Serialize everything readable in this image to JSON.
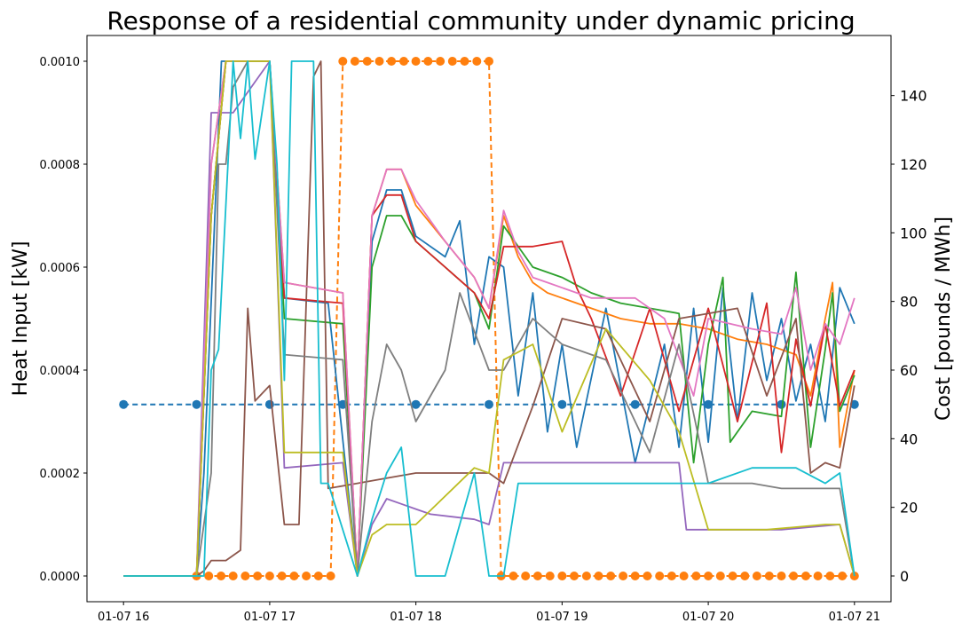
{
  "chart_data": {
    "type": "line",
    "title": "Response of a residential community under dynamic pricing",
    "xlabel": "",
    "ylabel": "Heat Input [kW]",
    "ylabel_right": "Cost [pounds / MWh]",
    "x_ticks": [
      "01-07 16",
      "01-07 17",
      "01-07 18",
      "01-07 19",
      "01-07 20",
      "01-07 21"
    ],
    "xlim": [
      15.75,
      21.25
    ],
    "ylim": [
      -5e-05,
      0.00105
    ],
    "y_ticks": [
      0.0,
      0.0002,
      0.0004,
      0.0006,
      0.0008,
      0.001
    ],
    "y_tick_labels": [
      "0.0000",
      "0.0002",
      "0.0004",
      "0.0006",
      "0.0008",
      "0.0010"
    ],
    "ylim_right": [
      -7.5,
      157.5
    ],
    "y_ticks_right": [
      0,
      20,
      40,
      60,
      80,
      100,
      120,
      140
    ],
    "grid": false,
    "price_series": [
      {
        "axis": "right",
        "color": "#1f77b4",
        "style": "dashed-markers",
        "x": [
          16.0,
          16.5,
          17.0,
          17.5,
          18.0,
          18.5,
          19.0,
          19.5,
          20.0,
          20.5,
          21.0
        ],
        "values": [
          50,
          50,
          50,
          50,
          50,
          50,
          50,
          50,
          50,
          50,
          50
        ]
      },
      {
        "axis": "right",
        "color": "#ff7f0e",
        "style": "dashed-markers",
        "x": [
          16.5,
          16.583,
          16.667,
          16.75,
          16.833,
          16.917,
          17.0,
          17.083,
          17.167,
          17.25,
          17.333,
          17.417,
          17.5,
          17.583,
          17.667,
          17.75,
          17.833,
          17.917,
          18.0,
          18.083,
          18.167,
          18.25,
          18.333,
          18.417,
          18.5,
          18.583,
          18.667,
          18.75,
          18.833,
          18.917,
          19.0,
          19.083,
          19.167,
          19.25,
          19.333,
          19.417,
          19.5,
          19.583,
          19.667,
          19.75,
          19.833,
          19.917,
          20.0,
          20.083,
          20.167,
          20.25,
          20.333,
          20.417,
          20.5,
          20.583,
          20.667,
          20.75,
          20.833,
          20.917,
          21.0
        ],
        "values": [
          0,
          0,
          0,
          0,
          0,
          0,
          0,
          0,
          0,
          0,
          0,
          0,
          150,
          150,
          150,
          150,
          150,
          150,
          150,
          150,
          150,
          150,
          150,
          150,
          150,
          0,
          0,
          0,
          0,
          0,
          0,
          0,
          0,
          0,
          0,
          0,
          0,
          0,
          0,
          0,
          0,
          0,
          0,
          0,
          0,
          0,
          0,
          0,
          0,
          0,
          0,
          0,
          0,
          0,
          0
        ]
      }
    ],
    "heat_series": [
      {
        "color": "#1f77b4",
        "x": [
          16.0,
          16.5,
          16.55,
          16.67,
          16.75,
          17.0,
          17.1,
          17.4,
          17.6,
          17.7,
          17.8,
          17.9,
          18.0,
          18.2,
          18.3,
          18.4,
          18.5,
          18.6,
          18.7,
          18.8,
          18.9,
          19.0,
          19.1,
          19.3,
          19.5,
          19.7,
          19.8,
          19.9,
          20.0,
          20.1,
          20.2,
          20.3,
          20.4,
          20.5,
          20.6,
          20.7,
          20.8,
          20.9,
          21.0
        ],
        "values": [
          0,
          0,
          0.0002,
          0.001,
          0.001,
          0.001,
          0.00054,
          0.00053,
          0,
          0.00065,
          0.00075,
          0.00075,
          0.00066,
          0.00062,
          0.00069,
          0.00045,
          0.00062,
          0.0006,
          0.00035,
          0.00055,
          0.00028,
          0.00045,
          0.00025,
          0.00052,
          0.00022,
          0.00045,
          0.00025,
          0.00052,
          0.00026,
          0.00056,
          0.0003,
          0.00055,
          0.00038,
          0.0005,
          0.00034,
          0.00045,
          0.0003,
          0.00056,
          0.00049
        ]
      },
      {
        "color": "#ff7f0e",
        "x": [
          16.0,
          16.5,
          16.6,
          16.7,
          17.0,
          17.1,
          17.5,
          17.6,
          17.7,
          17.8,
          17.9,
          18.0,
          18.2,
          18.4,
          18.5,
          18.6,
          18.7,
          18.8,
          18.9,
          19.0,
          19.2,
          19.4,
          19.6,
          19.8,
          20.0,
          20.2,
          20.4,
          20.6,
          20.7,
          20.8,
          20.85,
          20.9,
          21.0
        ],
        "values": [
          0,
          0,
          0.0008,
          0.001,
          0.001,
          0.00057,
          0.00055,
          0,
          0.0007,
          0.00079,
          0.00079,
          0.00072,
          0.00065,
          0.00058,
          0.00052,
          0.0007,
          0.00062,
          0.00057,
          0.00055,
          0.00054,
          0.00052,
          0.0005,
          0.00049,
          0.00049,
          0.00048,
          0.00046,
          0.00045,
          0.00043,
          0.00035,
          0.0005,
          0.00057,
          0.00025,
          0.0004
        ]
      },
      {
        "color": "#2ca02c",
        "x": [
          16.0,
          16.5,
          16.6,
          16.7,
          17.0,
          17.1,
          17.5,
          17.6,
          17.7,
          17.8,
          17.9,
          18.0,
          18.2,
          18.4,
          18.5,
          18.6,
          18.8,
          19.0,
          19.2,
          19.4,
          19.6,
          19.8,
          19.9,
          20.0,
          20.1,
          20.15,
          20.3,
          20.5,
          20.6,
          20.7,
          20.8,
          20.85,
          20.9,
          21.0
        ],
        "values": [
          0,
          0,
          0.0007,
          0.001,
          0.001,
          0.0005,
          0.00049,
          0,
          0.0006,
          0.0007,
          0.0007,
          0.00065,
          0.0006,
          0.00055,
          0.00048,
          0.00068,
          0.0006,
          0.00058,
          0.00055,
          0.00053,
          0.00052,
          0.00051,
          0.00022,
          0.00045,
          0.00058,
          0.00026,
          0.00032,
          0.00031,
          0.00059,
          0.00025,
          0.00044,
          0.00055,
          0.00032,
          0.00039
        ]
      },
      {
        "color": "#d62728",
        "x": [
          16.0,
          16.5,
          16.6,
          16.7,
          17.0,
          17.1,
          17.5,
          17.6,
          17.7,
          17.8,
          17.9,
          18.0,
          18.2,
          18.4,
          18.5,
          18.6,
          18.8,
          19.0,
          19.1,
          19.2,
          19.4,
          19.6,
          19.8,
          20.0,
          20.2,
          20.4,
          20.5,
          20.6,
          20.7,
          20.8,
          20.9,
          21.0
        ],
        "values": [
          0,
          0,
          0.0007,
          0.001,
          0.001,
          0.00054,
          0.00053,
          0,
          0.0007,
          0.00074,
          0.00074,
          0.00065,
          0.0006,
          0.00055,
          0.0005,
          0.00064,
          0.00064,
          0.00065,
          0.00056,
          0.0005,
          0.00035,
          0.00052,
          0.00032,
          0.00052,
          0.0003,
          0.00053,
          0.00024,
          0.00046,
          0.00033,
          0.00049,
          0.00033,
          0.0004
        ]
      },
      {
        "color": "#9467bd",
        "x": [
          16.0,
          16.5,
          16.6,
          16.7,
          16.75,
          17.0,
          17.1,
          17.5,
          17.6,
          17.7,
          17.8,
          17.9,
          18.0,
          18.1,
          18.4,
          18.5,
          18.6,
          18.8,
          19.0,
          19.2,
          19.4,
          19.6,
          19.8,
          19.85,
          20.0,
          20.5,
          20.9,
          21.0
        ],
        "values": [
          0,
          0,
          0.0009,
          0.0009,
          0.0009,
          0.001,
          0.00021,
          0.00022,
          0,
          0.0001,
          0.00015,
          0.00014,
          0.00013,
          0.00012,
          0.00011,
          0.0001,
          0.00022,
          0.00022,
          0.00022,
          0.00022,
          0.00022,
          0.00022,
          0.00022,
          9e-05,
          9e-05,
          9e-05,
          0.0001,
          0
        ]
      },
      {
        "color": "#8c564b",
        "x": [
          16.0,
          16.5,
          16.55,
          16.6,
          16.7,
          16.8,
          16.85,
          16.9,
          17.0,
          17.1,
          17.2,
          17.3,
          17.35,
          17.4,
          17.6,
          17.8,
          18.0,
          18.3,
          18.4,
          18.5,
          18.6,
          18.8,
          19.0,
          19.3,
          19.6,
          19.8,
          20.0,
          20.2,
          20.4,
          20.6,
          20.7,
          20.8,
          20.9,
          21.0
        ],
        "values": [
          0,
          0,
          1e-05,
          3e-05,
          3e-05,
          5e-05,
          0.00052,
          0.00034,
          0.00037,
          0.0001,
          0.0001,
          0.00097,
          0.001,
          0.00017,
          0.00018,
          0.00019,
          0.0002,
          0.0002,
          0.0002,
          0.0002,
          0.00018,
          0.00033,
          0.0005,
          0.00048,
          0.0003,
          0.0005,
          0.00051,
          0.00052,
          0.00035,
          0.0005,
          0.0002,
          0.00022,
          0.00021,
          0.00037
        ]
      },
      {
        "color": "#e377c2",
        "x": [
          16.0,
          16.5,
          16.6,
          16.7,
          17.0,
          17.1,
          17.5,
          17.6,
          17.7,
          17.8,
          17.9,
          18.0,
          18.2,
          18.4,
          18.5,
          18.6,
          18.7,
          18.8,
          18.9,
          19.0,
          19.2,
          19.5,
          19.7,
          19.9,
          20.0,
          20.3,
          20.5,
          20.6,
          20.7,
          20.8,
          20.9,
          21.0
        ],
        "values": [
          0,
          0,
          0.0008,
          0.001,
          0.001,
          0.00057,
          0.00055,
          0,
          0.0007,
          0.00079,
          0.00079,
          0.00073,
          0.00065,
          0.00058,
          0.00052,
          0.00071,
          0.00063,
          0.00058,
          0.00057,
          0.00056,
          0.00054,
          0.00054,
          0.0005,
          0.00035,
          0.0005,
          0.00048,
          0.00047,
          0.00056,
          0.0004,
          0.00049,
          0.00045,
          0.00054
        ]
      },
      {
        "color": "#7f7f7f",
        "x": [
          16.0,
          16.5,
          16.6,
          16.65,
          16.7,
          16.75,
          16.85,
          17.0,
          17.1,
          17.5,
          17.6,
          17.7,
          17.8,
          17.9,
          18.0,
          18.2,
          18.3,
          18.5,
          18.6,
          18.8,
          19.0,
          19.3,
          19.6,
          19.8,
          20.0,
          20.3,
          20.5,
          20.8,
          20.9,
          21.0
        ],
        "values": [
          0,
          0,
          0.0002,
          0.0008,
          0.0008,
          0.00095,
          0.001,
          0.001,
          0.00043,
          0.00042,
          0,
          0.0003,
          0.00045,
          0.0004,
          0.0003,
          0.0004,
          0.00055,
          0.0004,
          0.0004,
          0.0005,
          0.00045,
          0.00042,
          0.00024,
          0.00045,
          0.00018,
          0.00018,
          0.00017,
          0.00017,
          0.00017,
          0
        ]
      },
      {
        "color": "#bcbd22",
        "x": [
          16.0,
          16.5,
          16.6,
          16.7,
          17.0,
          17.1,
          17.5,
          17.6,
          17.7,
          17.8,
          17.9,
          18.0,
          18.4,
          18.5,
          18.6,
          18.8,
          19.0,
          19.3,
          19.6,
          19.8,
          20.0,
          20.4,
          20.8,
          20.9,
          21.0
        ],
        "values": [
          0,
          0,
          0.0007,
          0.001,
          0.001,
          0.00024,
          0.00024,
          0,
          8e-05,
          0.0001,
          0.0001,
          0.0001,
          0.00021,
          0.0002,
          0.00042,
          0.00045,
          0.00028,
          0.00048,
          0.00038,
          0.00028,
          9e-05,
          9e-05,
          0.0001,
          0.0001,
          0
        ]
      },
      {
        "color": "#17becf",
        "x": [
          16.0,
          16.5,
          16.55,
          16.6,
          16.65,
          16.75,
          16.8,
          16.85,
          16.9,
          17.0,
          17.05,
          17.1,
          17.15,
          17.2,
          17.3,
          17.35,
          17.4,
          17.6,
          17.7,
          17.8,
          17.9,
          18.0,
          18.2,
          18.4,
          18.5,
          18.6,
          18.7,
          18.8,
          19.0,
          19.3,
          19.6,
          19.8,
          20.0,
          20.3,
          20.6,
          20.8,
          20.9,
          21.0
        ],
        "values": [
          0,
          0,
          0,
          0.0004,
          0.00044,
          0.001,
          0.00085,
          0.001,
          0.00081,
          0.001,
          0.0008,
          0.00038,
          0.001,
          0.001,
          0.001,
          0.00018,
          0.00018,
          0,
          0.00011,
          0.0002,
          0.00025,
          0,
          0,
          0.0002,
          0,
          0,
          0.00018,
          0.00018,
          0.00018,
          0.00018,
          0.00018,
          0.00018,
          0.00018,
          0.00021,
          0.00021,
          0.00018,
          0.0002,
          0
        ]
      }
    ]
  }
}
